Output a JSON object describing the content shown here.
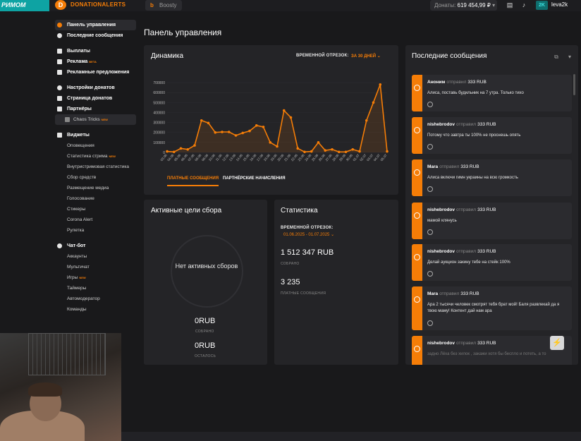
{
  "header": {
    "logo_left_text": "РИМОМ",
    "brand": "DONATIONALERTS",
    "boosty_label": "Boosty",
    "donates_label": "Донаты:",
    "donates_value": "619 454,99 ₽",
    "avatar_initials": "2K",
    "username": "leva2k"
  },
  "sidebar": {
    "items": [
      {
        "label": "Панель управления",
        "bold": true,
        "active": true
      },
      {
        "label": "Последние сообщения",
        "bold": true
      },
      {
        "label": "Выплаты",
        "bold": true
      },
      {
        "label": "Реклама",
        "bold": true,
        "badge": "BETA"
      },
      {
        "label": "Рекламные предложения",
        "bold": true
      },
      {
        "label": "Настройки донатов",
        "bold": true
      },
      {
        "label": "Страница донатов",
        "bold": true
      },
      {
        "label": "Партнёры",
        "bold": true
      },
      {
        "label": "Chaos Tricks",
        "badge": "NEW"
      },
      {
        "label": "Виджеты",
        "bold": true
      },
      {
        "label": "Оповещения"
      },
      {
        "label": "Статистика стрима",
        "badge": "NEW"
      },
      {
        "label": "Внутристримовая статистика"
      },
      {
        "label": "Сбор средств"
      },
      {
        "label": "Размещение медиа"
      },
      {
        "label": "Голосование"
      },
      {
        "label": "Стикеры"
      },
      {
        "label": "Corona Alert"
      },
      {
        "label": "Рулетка"
      },
      {
        "label": "Чат-бот",
        "bold": true
      },
      {
        "label": "Аккаунты"
      },
      {
        "label": "Мультичат"
      },
      {
        "label": "Игры",
        "badge": "NEW"
      },
      {
        "label": "Таймеры"
      },
      {
        "label": "Автомодератор"
      },
      {
        "label": "Команды"
      }
    ]
  },
  "page": {
    "title": "Панель управления"
  },
  "dynamics": {
    "title": "Динамика",
    "period_label": "ВРЕМЕННОЙ ОТРЕЗОК:",
    "period_value": "ЗА 30 ДНЕЙ",
    "tab_paid": "ПЛАТНЫЕ СООБЩЕНИЯ",
    "tab_partner": "ПАРТНЁРСКИЕ НАЧИСЛЕНИЯ"
  },
  "chart_data": {
    "type": "area",
    "categories": [
      "03.06",
      "04.06",
      "05.06",
      "06.06",
      "07.06",
      "08.06",
      "09.06",
      "10.06",
      "11.06",
      "12.06",
      "13.06",
      "14.06",
      "15.06",
      "16.06",
      "17.06",
      "18.06",
      "19.06",
      "20.06",
      "21.06",
      "22.06",
      "23.06",
      "24.06",
      "25.06",
      "26.06",
      "27.06",
      "28.06",
      "29.06",
      "30.06",
      "01.07",
      "02.07",
      "03.07",
      "04.07",
      "05.07"
    ],
    "series": [
      {
        "values": [
          10000,
          5000,
          40000,
          30000,
          70000,
          320000,
          295000,
          200000,
          205000,
          205000,
          170000,
          195000,
          215000,
          270000,
          255000,
          100000,
          60000,
          420000,
          350000,
          40000,
          5000,
          10000,
          100000,
          20000,
          30000,
          5000,
          5000,
          30000,
          10000,
          320000,
          500000,
          680000,
          10000
        ]
      }
    ],
    "yticks": [
      "0",
      "100000",
      "200000",
      "300000",
      "400000",
      "500000",
      "600000",
      "700000"
    ],
    "ylim": [
      0,
      700000
    ],
    "color": "#f57d07"
  },
  "goals": {
    "title": "Активные цели сбора",
    "empty_text": "Нет активных сборов",
    "collected_value": "0RUB",
    "collected_label": "СОБРАНО",
    "left_value": "0RUB",
    "left_label": "ОСТАЛОСЬ"
  },
  "stats": {
    "title": "Статистика",
    "period_label": "ВРЕМЕННОЙ ОТРЕЗОК:",
    "period_value": "01.06.2025 - 01.07.2025",
    "collected_value": "1 512 347 RUB",
    "collected_label": "СОБРАНО",
    "messages_value": "3 235",
    "messages_label": "ПЛАТНЫЕ СООБЩЕНИЯ"
  },
  "messages": {
    "title": "Последние сообщения",
    "verb": "отправил",
    "items": [
      {
        "name": "Аноним",
        "amount": "333 RUB",
        "text": "Алиса, поставь будильник на 7 утра. Только тихо"
      },
      {
        "name": "nishebrodov",
        "amount": "333 RUB",
        "text": "Потому что завтра ты 100% не проснешь опять"
      },
      {
        "name": "Mara",
        "amount": "333 RUB",
        "text": "Алиса включи гимн украины на всю громкость"
      },
      {
        "name": "nishebrodov",
        "amount": "333 RUB",
        "text": "мамой клянусь"
      },
      {
        "name": "nishebrodov",
        "amount": "333 RUB",
        "text": "Делай аукцион закину тебе на стейк 100%"
      },
      {
        "name": "Mara",
        "amount": "333 RUB",
        "text": "Ара 2 тысячи человек смотрят тебя брат мой! Баля развлекай да я твою маму! Контент дай нам ара"
      },
      {
        "name": "nishebrodov",
        "amount": "333 RUB",
        "text": "задно Лёха без хилок , закажи хотя бы беспло и потеть, а то"
      }
    ]
  }
}
